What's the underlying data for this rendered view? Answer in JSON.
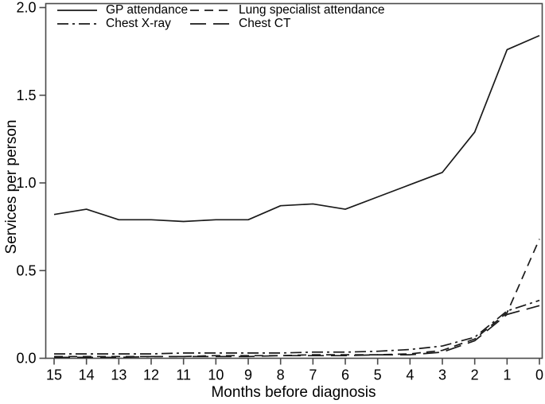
{
  "figure": {
    "background": "#ffffff",
    "frame_color": "#4a4a4a",
    "line_color": "#1a1a1a",
    "text_color": "#000000"
  },
  "axes": {
    "x_label": "Months before diagnosis",
    "y_label": "Services per person",
    "x_ticks": [
      "15",
      "14",
      "13",
      "12",
      "11",
      "10",
      "9",
      "8",
      "7",
      "6",
      "5",
      "4",
      "3",
      "2",
      "1",
      "0"
    ],
    "y_ticks": [
      "0.0",
      "0.5",
      "1.0",
      "1.5",
      "2.0"
    ]
  },
  "chart_data": {
    "type": "line",
    "title": "",
    "xlabel": "Months before diagnosis",
    "ylabel": "Services per person",
    "x": [
      15,
      14,
      13,
      12,
      11,
      10,
      9,
      8,
      7,
      6,
      5,
      4,
      3,
      2,
      1,
      0
    ],
    "x_axis_direction": "reversed-countdown-to-zero",
    "ylim": [
      0,
      2.0
    ],
    "grid": false,
    "legend_position": "top-left",
    "series": [
      {
        "name": "GP attendance",
        "style": "solid",
        "values": [
          0.82,
          0.85,
          0.79,
          0.79,
          0.78,
          0.79,
          0.79,
          0.87,
          0.88,
          0.85,
          0.92,
          0.99,
          1.06,
          1.29,
          1.76,
          1.84
        ]
      },
      {
        "name": "Lung specialist attendance",
        "style": "dash",
        "values": [
          0.01,
          0.01,
          0.01,
          0.01,
          0.01,
          0.015,
          0.015,
          0.015,
          0.02,
          0.02,
          0.02,
          0.025,
          0.045,
          0.11,
          0.26,
          0.68
        ]
      },
      {
        "name": "Chest X-ray",
        "style": "dash-dot",
        "values": [
          0.025,
          0.025,
          0.025,
          0.025,
          0.03,
          0.03,
          0.03,
          0.03,
          0.035,
          0.035,
          0.04,
          0.05,
          0.07,
          0.12,
          0.27,
          0.33
        ]
      },
      {
        "name": "Chest CT",
        "style": "long-dash",
        "values": [
          0.005,
          0.005,
          0.005,
          0.01,
          0.01,
          0.01,
          0.01,
          0.015,
          0.015,
          0.015,
          0.02,
          0.02,
          0.035,
          0.1,
          0.25,
          0.3
        ]
      }
    ]
  }
}
